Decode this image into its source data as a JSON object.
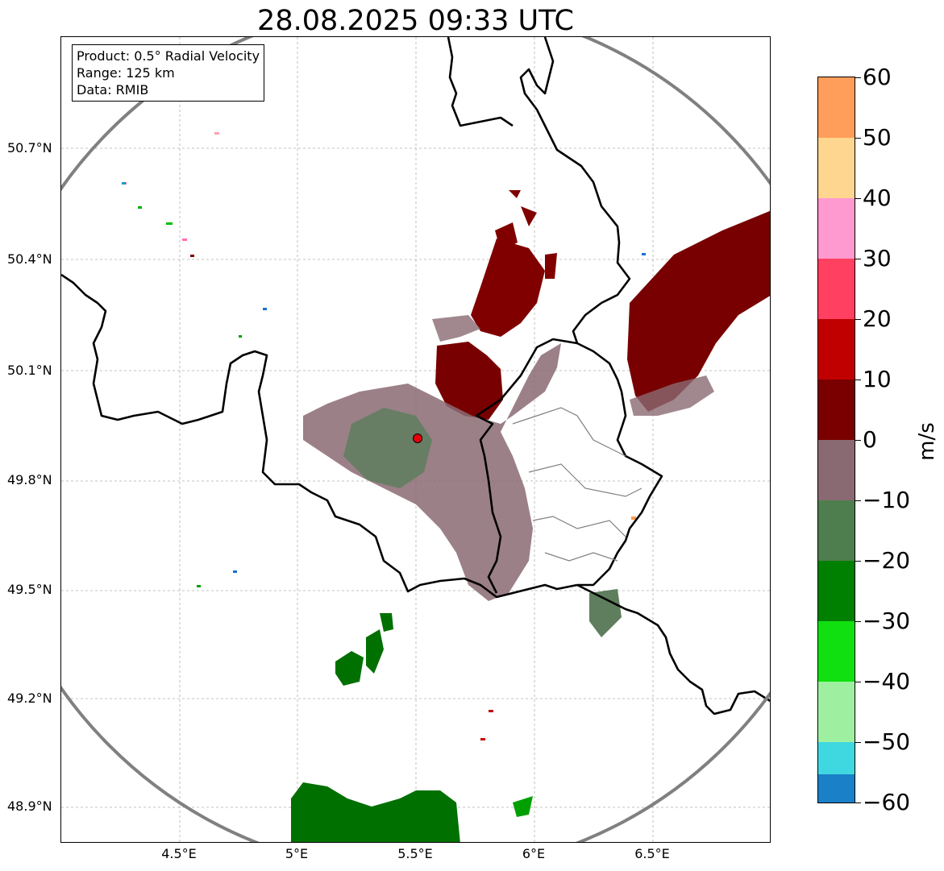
{
  "title": "28.08.2025 09:33 UTC",
  "info": {
    "product": "Product: 0.5° Radial Velocity",
    "range": "Range: 125 km",
    "data": "Data: RMIB"
  },
  "lat_ticks": [
    "50.7°N",
    "50.4°N",
    "50.1°N",
    "49.8°N",
    "49.5°N",
    "49.2°N",
    "48.9°N"
  ],
  "lon_ticks": [
    "4.5°E",
    "5°E",
    "5.5°E",
    "6°E",
    "6.5°E"
  ],
  "colorbar": {
    "unit": "m/s",
    "ticks": [
      "60",
      "50",
      "40",
      "30",
      "20",
      "10",
      "0",
      "−10",
      "−20",
      "−30",
      "−40",
      "−50",
      "−60"
    ],
    "min": -60,
    "max": 60
  },
  "radar_site": {
    "lat": 49.91,
    "lon": 5.5,
    "color": "#e8000b"
  },
  "colors": {
    "receding": "#780000",
    "near_zero_positive": "#8a6a72",
    "near_zero_negative": "#5e7e5e",
    "approaching": "#007000",
    "range_ring": "#808080"
  }
}
